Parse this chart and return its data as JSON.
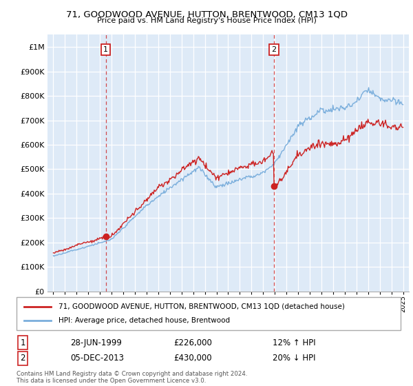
{
  "title": "71, GOODWOOD AVENUE, HUTTON, BRENTWOOD, CM13 1QD",
  "subtitle": "Price paid vs. HM Land Registry's House Price Index (HPI)",
  "sale1_date": "28-JUN-1999",
  "sale1_price": 226000,
  "sale1_label": "1",
  "sale1_year": 1999.49,
  "sale2_date": "05-DEC-2013",
  "sale2_price": 430000,
  "sale2_label": "2",
  "sale2_year": 2013.92,
  "legend_property": "71, GOODWOOD AVENUE, HUTTON, BRENTWOOD, CM13 1QD (detached house)",
  "legend_hpi": "HPI: Average price, detached house, Brentwood",
  "footer": "Contains HM Land Registry data © Crown copyright and database right 2024.\nThis data is licensed under the Open Government Licence v3.0.",
  "property_color": "#cc2222",
  "hpi_color": "#7aaedc",
  "annotation_box_color": "#cc2222",
  "background_color": "#ffffff",
  "chart_bg_color": "#deeaf7",
  "grid_color": "#ffffff",
  "ylim": [
    0,
    1050000
  ],
  "xlim_start": 1994.5,
  "xlim_end": 2025.5
}
